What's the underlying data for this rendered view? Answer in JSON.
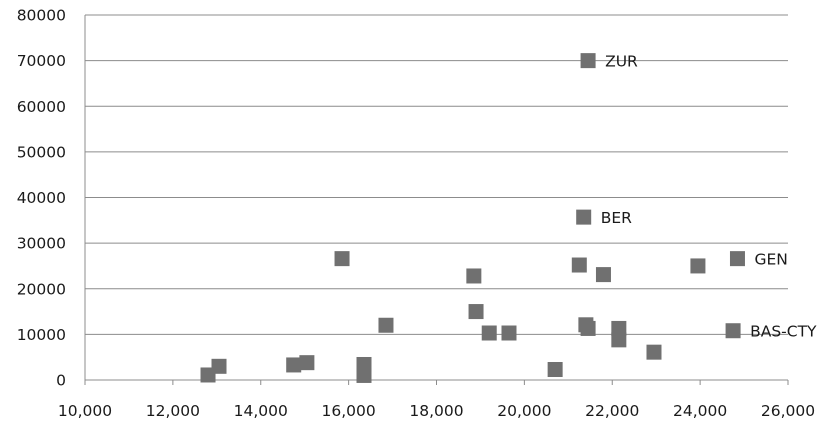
{
  "chart_data": {
    "type": "scatter",
    "title": "",
    "xlabel": "",
    "ylabel": "",
    "xlim": [
      10000,
      26000
    ],
    "ylim": [
      0,
      80000
    ],
    "x_ticks": [
      10000,
      12000,
      14000,
      16000,
      18000,
      20000,
      22000,
      24000,
      26000
    ],
    "x_tick_labels": [
      "10,000",
      "12,000",
      "14,000",
      "16,000",
      "18,000",
      "20,000",
      "22,000",
      "24,000",
      "26,000"
    ],
    "y_ticks": [
      0,
      10000,
      20000,
      30000,
      40000,
      50000,
      60000,
      70000,
      80000
    ],
    "y_tick_labels": [
      "0",
      "10000",
      "20000",
      "30000",
      "40000",
      "50000",
      "60000",
      "70000",
      "80000"
    ],
    "grid": "horizontal",
    "marker": "square",
    "marker_color": "#707070",
    "points": [
      {
        "x": 21450,
        "y": 70000,
        "label": "ZUR"
      },
      {
        "x": 21350,
        "y": 35700,
        "label": "BER"
      },
      {
        "x": 24850,
        "y": 26600,
        "label": "GEN"
      },
      {
        "x": 24750,
        "y": 10800,
        "label": "BAS-CTY"
      },
      {
        "x": 12800,
        "y": 1100
      },
      {
        "x": 13050,
        "y": 3000
      },
      {
        "x": 14750,
        "y": 3300
      },
      {
        "x": 15050,
        "y": 3800
      },
      {
        "x": 15850,
        "y": 26600
      },
      {
        "x": 16350,
        "y": 1000
      },
      {
        "x": 16350,
        "y": 3400
      },
      {
        "x": 16850,
        "y": 12000
      },
      {
        "x": 18850,
        "y": 22800
      },
      {
        "x": 18900,
        "y": 15000
      },
      {
        "x": 19200,
        "y": 10300
      },
      {
        "x": 19650,
        "y": 10300
      },
      {
        "x": 20700,
        "y": 2300
      },
      {
        "x": 21250,
        "y": 25200
      },
      {
        "x": 21400,
        "y": 12100
      },
      {
        "x": 21450,
        "y": 11300
      },
      {
        "x": 21800,
        "y": 23100
      },
      {
        "x": 22150,
        "y": 11300
      },
      {
        "x": 22150,
        "y": 8800
      },
      {
        "x": 22950,
        "y": 6100
      },
      {
        "x": 23950,
        "y": 25000
      }
    ]
  }
}
